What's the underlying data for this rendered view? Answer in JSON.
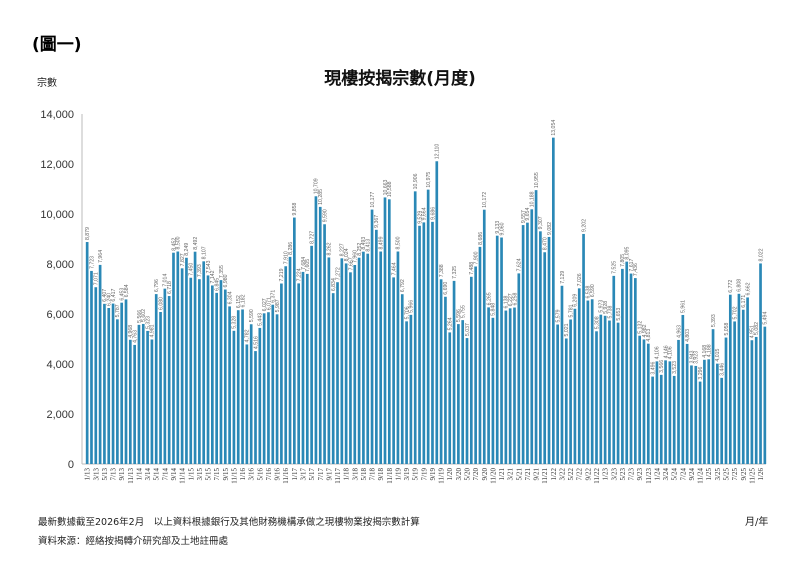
{
  "figure_label": "(圖一)",
  "notes": {
    "line1": "最新數據截至2026年2月　以上資料根據銀行及其他財務機構承做之現樓物業按揭宗數計算",
    "line2": "資料來源：經絡按揭轉介研究部及土地註冊處"
  },
  "colors": {
    "bar": "#2a88b6",
    "axis": "#bbbbbb",
    "label": "#666666"
  },
  "chart_data": {
    "type": "bar",
    "title": "現樓按揭宗數(月度)",
    "ylabel": "宗數",
    "xlabel": "月/年",
    "ylim": [
      0,
      14000
    ],
    "yticks": [
      0,
      2000,
      4000,
      6000,
      8000,
      10000,
      12000,
      14000
    ],
    "ytick_labels": [
      "0",
      "2,000",
      "4,000",
      "6,000",
      "8,000",
      "10,000",
      "12,000",
      "14,000"
    ],
    "grid": false,
    "legend": "none",
    "tick_every": 2,
    "categories": [
      "1/13",
      "2/13",
      "3/13",
      "4/13",
      "5/13",
      "6/13",
      "7/13",
      "8/13",
      "9/13",
      "10/13",
      "11/13",
      "12/13",
      "1/14",
      "2/14",
      "3/14",
      "4/14",
      "5/14",
      "6/14",
      "7/14",
      "8/14",
      "9/14",
      "10/14",
      "11/14",
      "12/14",
      "1/15",
      "2/15",
      "3/15",
      "4/15",
      "5/15",
      "6/15",
      "7/15",
      "8/15",
      "9/15",
      "10/15",
      "11/15",
      "12/15",
      "1/16",
      "2/16",
      "3/16",
      "4/16",
      "5/16",
      "6/16",
      "7/16",
      "8/16",
      "9/16",
      "10/16",
      "11/16",
      "12/16",
      "1/17",
      "2/17",
      "3/17",
      "4/17",
      "5/17",
      "6/17",
      "7/17",
      "8/17",
      "9/17",
      "10/17",
      "11/17",
      "12/17",
      "1/18",
      "2/18",
      "3/18",
      "4/18",
      "5/18",
      "6/18",
      "7/18",
      "8/18",
      "9/18",
      "10/18",
      "11/18",
      "12/18",
      "1/19",
      "2/19",
      "3/19",
      "4/19",
      "5/19",
      "6/19",
      "7/19",
      "8/19",
      "9/19",
      "10/19",
      "11/19",
      "12/19",
      "1/20",
      "2/20",
      "3/20",
      "4/20",
      "5/20",
      "6/20",
      "7/20",
      "8/20",
      "9/20",
      "10/20",
      "11/20",
      "12/20",
      "1/21",
      "2/21",
      "3/21",
      "4/21",
      "5/21",
      "6/21",
      "7/21",
      "8/21",
      "9/21",
      "10/21",
      "11/21",
      "12/21",
      "1/22",
      "2/22",
      "3/22",
      "4/22",
      "5/22",
      "6/22",
      "7/22",
      "8/22",
      "9/22",
      "10/22",
      "11/22",
      "12/22",
      "1/23",
      "2/23",
      "3/23",
      "4/23",
      "5/23",
      "6/23",
      "7/23",
      "8/23",
      "9/23",
      "10/23",
      "11/23",
      "12/23",
      "1/24",
      "2/24",
      "3/24",
      "4/24",
      "5/24",
      "6/24",
      "7/24",
      "8/24",
      "9/24",
      "10/24",
      "11/24",
      "12/24",
      "1/25",
      "2/25",
      "3/25",
      "4/25",
      "5/25",
      "6/25",
      "7/25",
      "8/25",
      "9/25",
      "10/25",
      "11/25",
      "12/25",
      "1/26",
      "2/26"
    ],
    "values": [
      8879,
      7723,
      7071,
      7964,
      6407,
      6240,
      6417,
      5787,
      6453,
      6584,
      4968,
      4763,
      5566,
      5602,
      5323,
      4981,
      6796,
      6080,
      7014,
      6718,
      8452,
      8500,
      7827,
      8249,
      7450,
      8492,
      7393,
      8107,
      7543,
      7142,
      6845,
      7355,
      6980,
      6304,
      5328,
      6152,
      6182,
      4782,
      5590,
      4516,
      5443,
      6027,
      6071,
      6371,
      5987,
      7219,
      7910,
      8286,
      9858,
      7224,
      7684,
      7605,
      8727,
      10709,
      10285,
      9590,
      8262,
      6834,
      7272,
      8227,
      8024,
      7667,
      7960,
      8252,
      8493,
      8413,
      10177,
      9367,
      8499,
      10663,
      10588,
      7464,
      8500,
      6792,
      5706,
      5966,
      10906,
      9529,
      9664,
      10975,
      9686,
      12110,
      7388,
      6690,
      5264,
      7325,
      5596,
      5755,
      5037,
      7488,
      7900,
      8686,
      10172,
      6265,
      5848,
      9133,
      9060,
      6138,
      6227,
      6258,
      7624,
      9557,
      9654,
      10188,
      10955,
      9307,
      8470,
      9082,
      13054,
      5579,
      7129,
      5021,
      5781,
      6209,
      7026,
      9202,
      6538,
      6590,
      5308,
      5973,
      5928,
      5738,
      7525,
      5653,
      7805,
      8095,
      7617,
      7436,
      5132,
      4982,
      4813,
      3496,
      4106,
      3566,
      4146,
      4106,
      3523,
      4963,
      5961,
      4803,
      3943,
      3923,
      3296,
      4168,
      4188,
      5393,
      4015,
      3446,
      5058,
      6772,
      5702,
      6808,
      6171,
      6662,
      4951,
      5082,
      8022,
      5494
    ]
  }
}
